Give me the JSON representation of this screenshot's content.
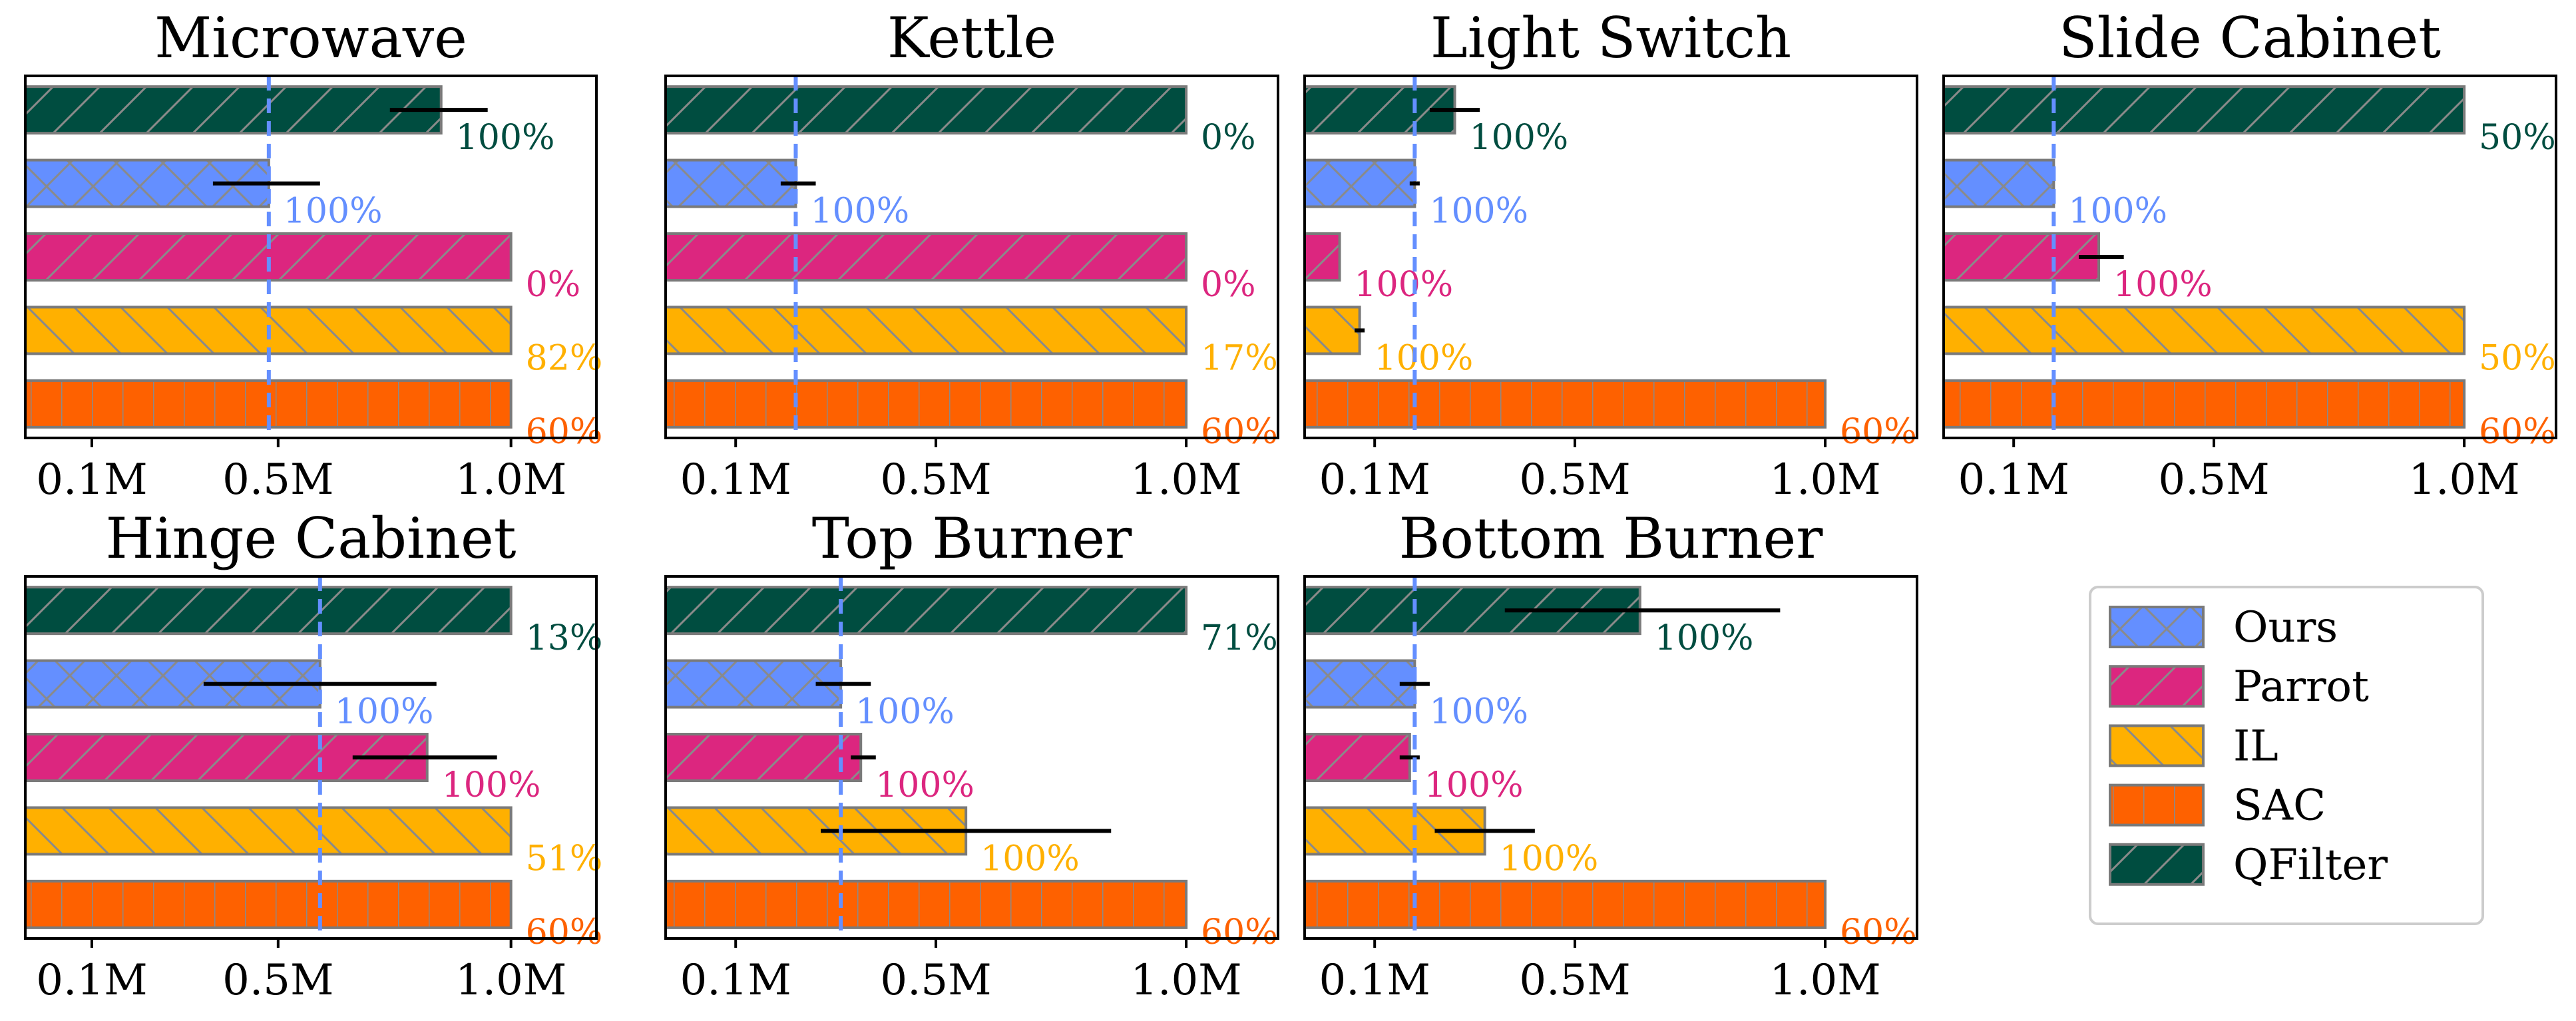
{
  "chart_data": {
    "type": "bar",
    "orientation": "horizontal",
    "x_tick_labels": [
      "0.1M",
      "0.5M",
      "1.0M"
    ],
    "x_tick_values": [
      0.1,
      0.5,
      1.0
    ],
    "xlim": [
      0.0,
      1.15
    ],
    "series_order": [
      "QFilter",
      "Ours",
      "Parrot",
      "IL",
      "SAC"
    ],
    "series_styles": {
      "QFilter": {
        "color": "#004d40",
        "hatch": "slash"
      },
      "Ours": {
        "color": "#648fff",
        "hatch": "cross"
      },
      "Parrot": {
        "color": "#dc267f",
        "hatch": "slash"
      },
      "IL": {
        "color": "#ffb000",
        "hatch": "backslash"
      },
      "SAC": {
        "color": "#fe6100",
        "hatch": "grid"
      }
    },
    "reference_line_color": "#648fff",
    "legend": {
      "location": "bottom-right",
      "entries": [
        "Ours",
        "Parrot",
        "IL",
        "SAC",
        "QFilter"
      ]
    },
    "panels": [
      {
        "title": "Microwave",
        "reference_line": 0.48,
        "bars": [
          {
            "series": "QFilter",
            "value": 0.85,
            "err": [
              0.74,
              0.95
            ],
            "label": "100%"
          },
          {
            "series": "Ours",
            "value": 0.48,
            "err": [
              0.36,
              0.59
            ],
            "label": "100%"
          },
          {
            "series": "Parrot",
            "value": 1.0,
            "err": null,
            "label": "0%"
          },
          {
            "series": "IL",
            "value": 1.0,
            "err": null,
            "label": "82%"
          },
          {
            "series": "SAC",
            "value": 1.0,
            "err": null,
            "label": "60%"
          }
        ]
      },
      {
        "title": "Kettle",
        "reference_line": 0.22,
        "bars": [
          {
            "series": "QFilter",
            "value": 1.0,
            "err": null,
            "label": "0%"
          },
          {
            "series": "Ours",
            "value": 0.22,
            "err": [
              0.19,
              0.26
            ],
            "label": "100%"
          },
          {
            "series": "Parrot",
            "value": 1.0,
            "err": null,
            "label": "0%"
          },
          {
            "series": "IL",
            "value": 1.0,
            "err": null,
            "label": "17%"
          },
          {
            "series": "SAC",
            "value": 1.0,
            "err": null,
            "label": "60%"
          }
        ]
      },
      {
        "title": "Light Switch",
        "reference_line": 0.18,
        "bars": [
          {
            "series": "QFilter",
            "value": 0.26,
            "err": [
              0.21,
              0.31
            ],
            "label": "100%"
          },
          {
            "series": "Ours",
            "value": 0.18,
            "err": [
              0.17,
              0.19
            ],
            "label": "100%"
          },
          {
            "series": "Parrot",
            "value": 0.03,
            "err": null,
            "label": "100%"
          },
          {
            "series": "IL",
            "value": 0.07,
            "err": [
              0.06,
              0.08
            ],
            "label": "100%"
          },
          {
            "series": "SAC",
            "value": 1.0,
            "err": null,
            "label": "60%"
          }
        ]
      },
      {
        "title": "Slide Cabinet",
        "reference_line": 0.18,
        "bars": [
          {
            "series": "QFilter",
            "value": 1.0,
            "err": null,
            "label": "50%"
          },
          {
            "series": "Ours",
            "value": 0.18,
            "err": null,
            "label": "100%"
          },
          {
            "series": "Parrot",
            "value": 0.27,
            "err": [
              0.23,
              0.32
            ],
            "label": "100%"
          },
          {
            "series": "IL",
            "value": 1.0,
            "err": null,
            "label": "50%"
          },
          {
            "series": "SAC",
            "value": 1.0,
            "err": null,
            "label": "60%"
          }
        ]
      },
      {
        "title": "Hinge Cabinet",
        "reference_line": 0.59,
        "bars": [
          {
            "series": "QFilter",
            "value": 1.0,
            "err": null,
            "label": "13%"
          },
          {
            "series": "Ours",
            "value": 0.59,
            "err": [
              0.34,
              0.84
            ],
            "label": "100%"
          },
          {
            "series": "Parrot",
            "value": 0.82,
            "err": [
              0.66,
              0.97
            ],
            "label": "100%"
          },
          {
            "series": "IL",
            "value": 1.0,
            "err": null,
            "label": "51%"
          },
          {
            "series": "SAC",
            "value": 1.0,
            "err": null,
            "label": "60%"
          }
        ]
      },
      {
        "title": "Top Burner",
        "reference_line": 0.31,
        "bars": [
          {
            "series": "QFilter",
            "value": 1.0,
            "err": null,
            "label": "71%"
          },
          {
            "series": "Ours",
            "value": 0.31,
            "err": [
              0.26,
              0.37
            ],
            "label": "100%"
          },
          {
            "series": "Parrot",
            "value": 0.35,
            "err": [
              0.33,
              0.38
            ],
            "label": "100%"
          },
          {
            "series": "IL",
            "value": 0.56,
            "err": [
              0.27,
              0.85
            ],
            "label": "100%"
          },
          {
            "series": "SAC",
            "value": 1.0,
            "err": null,
            "label": "60%"
          }
        ]
      },
      {
        "title": "Bottom Burner",
        "reference_line": 0.18,
        "bars": [
          {
            "series": "QFilter",
            "value": 0.63,
            "err": [
              0.36,
              0.91
            ],
            "label": "100%"
          },
          {
            "series": "Ours",
            "value": 0.18,
            "err": [
              0.15,
              0.21
            ],
            "label": "100%"
          },
          {
            "series": "Parrot",
            "value": 0.17,
            "err": [
              0.15,
              0.19
            ],
            "label": "100%"
          },
          {
            "series": "IL",
            "value": 0.32,
            "err": [
              0.22,
              0.42
            ],
            "label": "100%"
          },
          {
            "series": "SAC",
            "value": 1.0,
            "err": null,
            "label": "60%"
          }
        ]
      }
    ]
  }
}
